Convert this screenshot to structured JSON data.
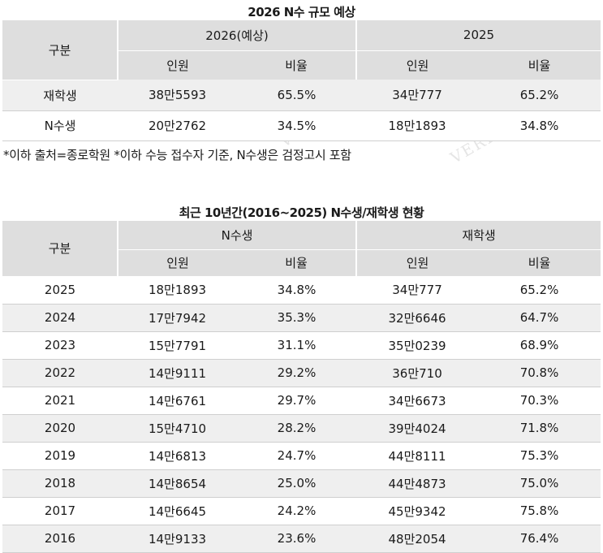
{
  "table1": {
    "title": "2026 N수 규모 예상",
    "header_col": "구분",
    "group_a": "2026(예상)",
    "group_b": "2025",
    "sub_people": "인원",
    "sub_ratio": "비율",
    "rows": [
      {
        "label": "재학생",
        "a_people": "38만5593",
        "a_ratio": "65.5%",
        "b_people": "34만777",
        "b_ratio": "65.2%"
      },
      {
        "label": "N수생",
        "a_people": "20만2762",
        "a_ratio": "34.5%",
        "b_people": "18만1893",
        "b_ratio": "34.8%"
      }
    ]
  },
  "note": "*이하 출처=종로학원  *이하 수능 접수자 기준, N수생은 검정고시 포함",
  "table2": {
    "title": "최근 10년간(2016~2025) N수생/재학생 현황",
    "header_col": "구분",
    "group_a": "N수생",
    "group_b": "재학생",
    "sub_people": "인원",
    "sub_ratio": "비율",
    "rows": [
      {
        "year": "2025",
        "n_people": "18만1893",
        "n_ratio": "34.8%",
        "s_people": "34만777",
        "s_ratio": "65.2%"
      },
      {
        "year": "2024",
        "n_people": "17만7942",
        "n_ratio": "35.3%",
        "s_people": "32만6646",
        "s_ratio": "64.7%"
      },
      {
        "year": "2023",
        "n_people": "15만7791",
        "n_ratio": "31.1%",
        "s_people": "35만0239",
        "s_ratio": "68.9%"
      },
      {
        "year": "2022",
        "n_people": "14만9111",
        "n_ratio": "29.2%",
        "s_people": "36만710",
        "s_ratio": "70.8%"
      },
      {
        "year": "2021",
        "n_people": "14만6761",
        "n_ratio": "29.7%",
        "s_people": "34만6673",
        "s_ratio": "70.3%"
      },
      {
        "year": "2020",
        "n_people": "15만4710",
        "n_ratio": "28.2%",
        "s_people": "39만4024",
        "s_ratio": "71.8%"
      },
      {
        "year": "2019",
        "n_people": "14만6813",
        "n_ratio": "24.7%",
        "s_people": "44만8111",
        "s_ratio": "75.3%"
      },
      {
        "year": "2018",
        "n_people": "14만8654",
        "n_ratio": "25.0%",
        "s_people": "44만4873",
        "s_ratio": "75.0%"
      },
      {
        "year": "2017",
        "n_people": "14만6645",
        "n_ratio": "24.2%",
        "s_people": "45만9342",
        "s_ratio": "75.8%"
      },
      {
        "year": "2016",
        "n_people": "14만9133",
        "n_ratio": "23.6%",
        "s_people": "48만2054",
        "s_ratio": "76.4%"
      }
    ]
  },
  "watermark": "VERITAS"
}
